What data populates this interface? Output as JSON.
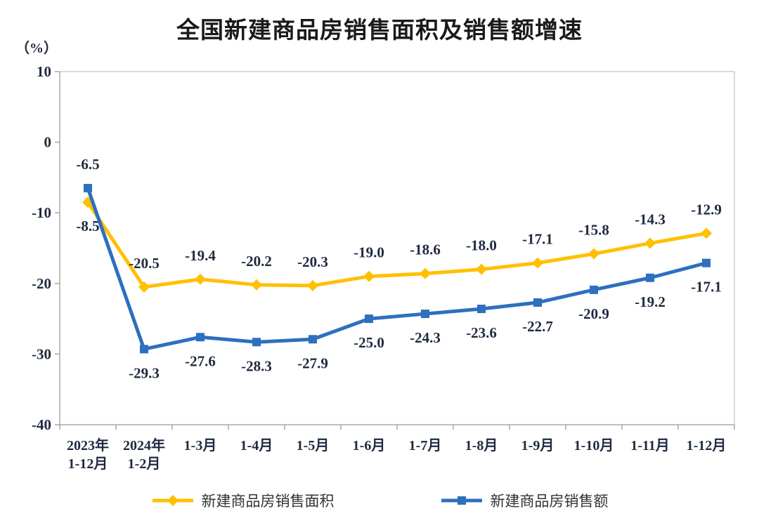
{
  "chart_data": {
    "type": "line",
    "title": "全国新建商品房销售面积及销售额增速",
    "y_axis_unit": "（%）",
    "categories": [
      [
        "2023年",
        "1-12月"
      ],
      [
        "2024年",
        "1-2月"
      ],
      [
        "1-3月"
      ],
      [
        "1-4月"
      ],
      [
        "1-5月"
      ],
      [
        "1-6月"
      ],
      [
        "1-7月"
      ],
      [
        "1-8月"
      ],
      [
        "1-9月"
      ],
      [
        "1-10月"
      ],
      [
        "1-11月"
      ],
      [
        "1-12月"
      ]
    ],
    "series": [
      {
        "name": "新建商品房销售面积",
        "color": "#FFC000",
        "marker": "diamond",
        "values": [
          -8.5,
          -20.5,
          -19.4,
          -20.2,
          -20.3,
          -19.0,
          -18.6,
          -18.0,
          -17.1,
          -15.8,
          -14.3,
          -12.9
        ],
        "label_side": "above",
        "label_side_overrides": {
          "0": "below"
        }
      },
      {
        "name": "新建商品房销售额",
        "color": "#2E6FBF",
        "marker": "square",
        "values": [
          -6.5,
          -29.3,
          -27.6,
          -28.3,
          -27.9,
          -25.0,
          -24.3,
          -23.6,
          -22.7,
          -20.9,
          -19.2,
          -17.1
        ],
        "label_side": "below",
        "label_side_overrides": {
          "0": "above"
        }
      }
    ],
    "ylim": [
      -40,
      10
    ],
    "yticks": [
      10,
      0,
      -10,
      -20,
      -30,
      -40
    ],
    "grid": false,
    "legend_position": "bottom",
    "colors": {
      "background": "#FFFFFF",
      "axis_line": "#A8A8A8",
      "plot_border": "#D9D9D9",
      "tick_label": "#1F2940",
      "data_label": "#1F2940",
      "title_text": "#1A1A1A",
      "legend_text": "#333333"
    }
  }
}
